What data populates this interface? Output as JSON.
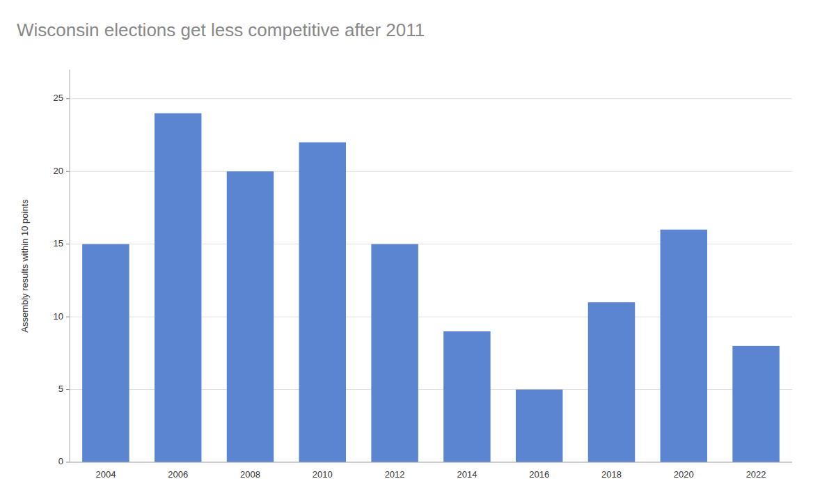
{
  "chart_data": {
    "type": "bar",
    "title": "Wisconsin elections get less competitive after 2011",
    "ylabel": "Assembly results within 10 points",
    "categories": [
      "2004",
      "2006",
      "2008",
      "2010",
      "2012",
      "2014",
      "2016",
      "2018",
      "2020",
      "2022"
    ],
    "values": [
      15,
      24,
      20,
      22,
      15,
      9,
      5,
      11,
      16,
      8
    ],
    "color": "#5b85d0",
    "ylim": [
      0,
      27
    ],
    "yticks": [
      0,
      5,
      10,
      15,
      20,
      25
    ],
    "grid": true
  }
}
